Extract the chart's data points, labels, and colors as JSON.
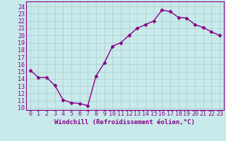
{
  "x": [
    0,
    1,
    2,
    3,
    4,
    5,
    6,
    7,
    8,
    9,
    10,
    11,
    12,
    13,
    14,
    15,
    16,
    17,
    18,
    19,
    20,
    21,
    22,
    23
  ],
  "y": [
    15.2,
    14.2,
    14.2,
    13.1,
    11.1,
    10.7,
    10.6,
    10.3,
    14.4,
    16.2,
    18.5,
    19.0,
    20.0,
    21.0,
    21.5,
    22.0,
    23.5,
    23.3,
    22.5,
    22.4,
    21.5,
    21.1,
    20.5,
    20.0
  ],
  "line_color": "#880088",
  "marker": "D",
  "markersize": 2.5,
  "bg_color": "#c8eaea",
  "grid_color": "#aacccc",
  "xlabel": "Windchill (Refroidissement éolien,°C)",
  "ylabel_ticks": [
    10,
    11,
    12,
    13,
    14,
    15,
    16,
    17,
    18,
    19,
    20,
    21,
    22,
    23,
    24
  ],
  "xlim": [
    -0.5,
    23.5
  ],
  "ylim": [
    9.7,
    24.7
  ],
  "xticks": [
    0,
    1,
    2,
    3,
    4,
    5,
    6,
    7,
    8,
    9,
    10,
    11,
    12,
    13,
    14,
    15,
    16,
    17,
    18,
    19,
    20,
    21,
    22,
    23
  ],
  "xlabel_fontsize": 6.5,
  "tick_fontsize": 6.0,
  "line_width": 1.0,
  "spine_color": "#880088"
}
